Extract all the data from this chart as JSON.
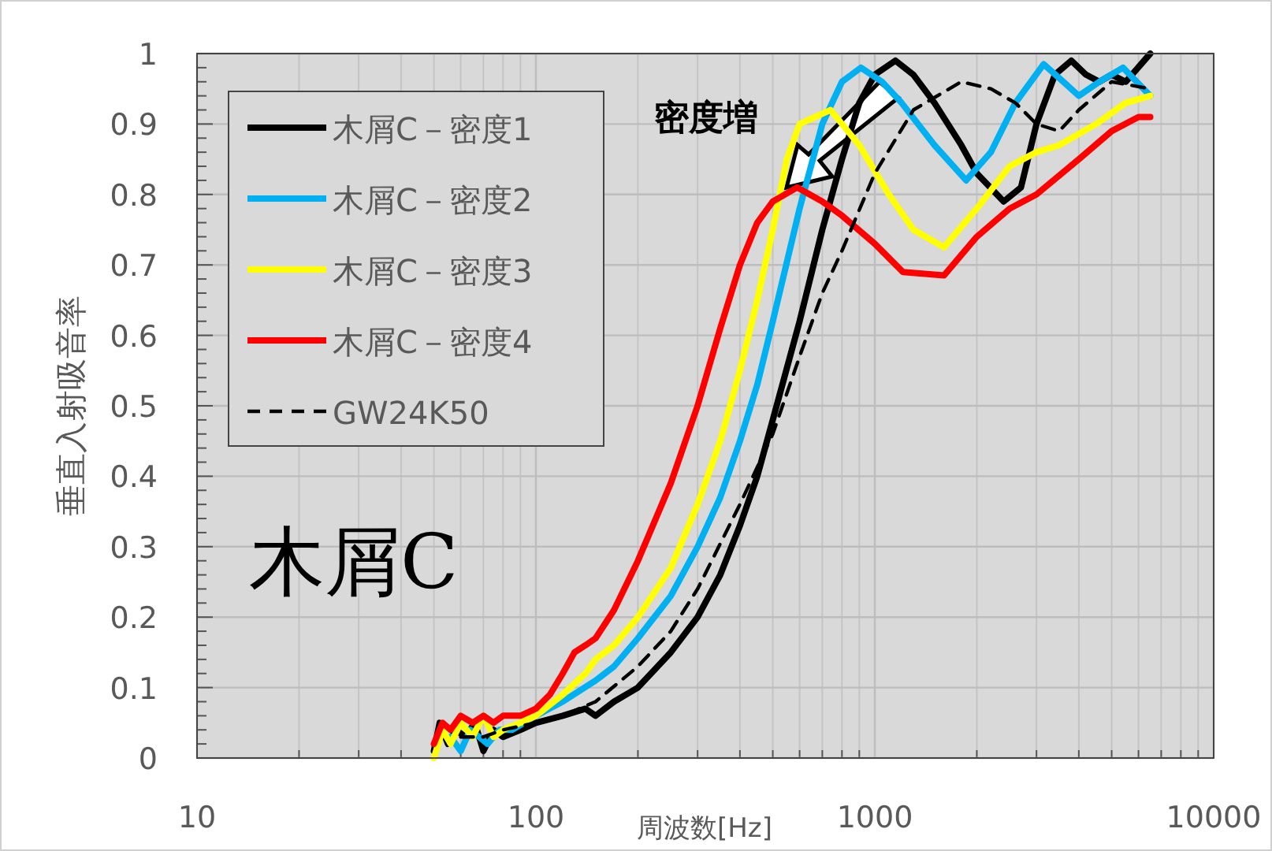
{
  "chart_data": {
    "type": "line",
    "xlabel": "周波数[Hz]",
    "ylabel": "垂直入射吸音率",
    "log": "x",
    "xlim": [
      10,
      10000
    ],
    "xticks": [
      10,
      100,
      1000,
      10000
    ],
    "ylim": [
      0,
      1
    ],
    "yticks": [
      0,
      0.1,
      0.2,
      0.3,
      0.4,
      0.5,
      0.6,
      0.7,
      0.8,
      0.9,
      1
    ],
    "grid": true,
    "legend": "top left",
    "annotations": [
      "木屑C",
      "密度増"
    ],
    "series": [
      {
        "name": "木屑C－密度1",
        "color": "#000000",
        "line_style": "solid",
        "x": [
          50,
          52,
          55,
          58,
          62,
          66,
          70,
          75,
          80,
          90,
          100,
          120,
          140,
          150,
          170,
          200,
          250,
          300,
          350,
          400,
          450,
          500,
          600,
          700,
          800,
          900,
          1000,
          1150,
          1300,
          1500,
          1800,
          2000,
          2400,
          2700,
          3000,
          3400,
          3800,
          4200,
          4600,
          5000,
          5500,
          6500
        ],
        "values": [
          0.01,
          0.05,
          0.02,
          0.04,
          0.03,
          0.05,
          0.01,
          0.04,
          0.03,
          0.04,
          0.05,
          0.06,
          0.07,
          0.06,
          0.08,
          0.1,
          0.15,
          0.2,
          0.26,
          0.33,
          0.4,
          0.48,
          0.62,
          0.75,
          0.85,
          0.93,
          0.97,
          0.99,
          0.97,
          0.93,
          0.87,
          0.83,
          0.79,
          0.81,
          0.9,
          0.97,
          0.99,
          0.97,
          0.96,
          0.97,
          0.96,
          1.0
        ]
      },
      {
        "name": "木屑C－密度2",
        "color": "#00b0f0",
        "line_style": "solid",
        "x": [
          56,
          60,
          64,
          68,
          72,
          78,
          85,
          100,
          120,
          150,
          170,
          200,
          250,
          300,
          350,
          400,
          450,
          500,
          600,
          700,
          800,
          910,
          1050,
          1200,
          1500,
          1860,
          2200,
          2600,
          3150,
          3600,
          4000,
          4600,
          5400,
          6500
        ],
        "values": [
          0.03,
          0.01,
          0.04,
          0.03,
          0.02,
          0.04,
          0.04,
          0.06,
          0.08,
          0.11,
          0.13,
          0.17,
          0.23,
          0.3,
          0.37,
          0.45,
          0.53,
          0.62,
          0.78,
          0.9,
          0.96,
          0.98,
          0.96,
          0.93,
          0.87,
          0.82,
          0.86,
          0.93,
          0.985,
          0.96,
          0.94,
          0.96,
          0.98,
          0.94
        ]
      },
      {
        "name": "木屑C－密度3",
        "color": "#ffff00",
        "line_style": "solid",
        "x": [
          50,
          53,
          56,
          60,
          65,
          70,
          75,
          80,
          90,
          100,
          120,
          140,
          150,
          170,
          200,
          250,
          300,
          350,
          400,
          450,
          500,
          550,
          600,
          740,
          900,
          1100,
          1300,
          1600,
          2000,
          2500,
          3000,
          3500,
          4500,
          5500,
          6500
        ],
        "values": [
          0.0,
          0.04,
          0.02,
          0.05,
          0.03,
          0.06,
          0.03,
          0.04,
          0.05,
          0.06,
          0.09,
          0.12,
          0.14,
          0.16,
          0.2,
          0.27,
          0.36,
          0.45,
          0.55,
          0.65,
          0.75,
          0.85,
          0.9,
          0.92,
          0.87,
          0.8,
          0.75,
          0.725,
          0.78,
          0.84,
          0.86,
          0.87,
          0.9,
          0.93,
          0.94
        ]
      },
      {
        "name": "木屑C－密度4",
        "color": "#ff0000",
        "line_style": "solid",
        "x": [
          50,
          53,
          56,
          60,
          65,
          70,
          75,
          80,
          90,
          100,
          110,
          120,
          130,
          140,
          150,
          170,
          200,
          250,
          300,
          350,
          400,
          450,
          500,
          590,
          700,
          800,
          1000,
          1210,
          1600,
          2000,
          2500,
          3000,
          4000,
          5000,
          6000,
          6500
        ],
        "values": [
          0.02,
          0.05,
          0.04,
          0.06,
          0.05,
          0.06,
          0.05,
          0.06,
          0.06,
          0.07,
          0.09,
          0.12,
          0.15,
          0.16,
          0.17,
          0.21,
          0.28,
          0.39,
          0.5,
          0.61,
          0.7,
          0.76,
          0.79,
          0.81,
          0.79,
          0.77,
          0.73,
          0.69,
          0.685,
          0.74,
          0.78,
          0.8,
          0.85,
          0.89,
          0.91,
          0.91
        ]
      },
      {
        "name": "GW24K50",
        "color": "#000000",
        "line_style": "dashed",
        "x": [
          60,
          70,
          80,
          100,
          120,
          150,
          200,
          250,
          300,
          400,
          500,
          600,
          700,
          800,
          1000,
          1300,
          1800,
          2200,
          2600,
          3000,
          3500,
          4000,
          5000,
          6500
        ],
        "values": [
          0.03,
          0.03,
          0.04,
          0.05,
          0.06,
          0.08,
          0.13,
          0.18,
          0.24,
          0.36,
          0.46,
          0.57,
          0.66,
          0.72,
          0.83,
          0.92,
          0.96,
          0.95,
          0.93,
          0.9,
          0.89,
          0.92,
          0.96,
          0.95
        ]
      }
    ]
  }
}
